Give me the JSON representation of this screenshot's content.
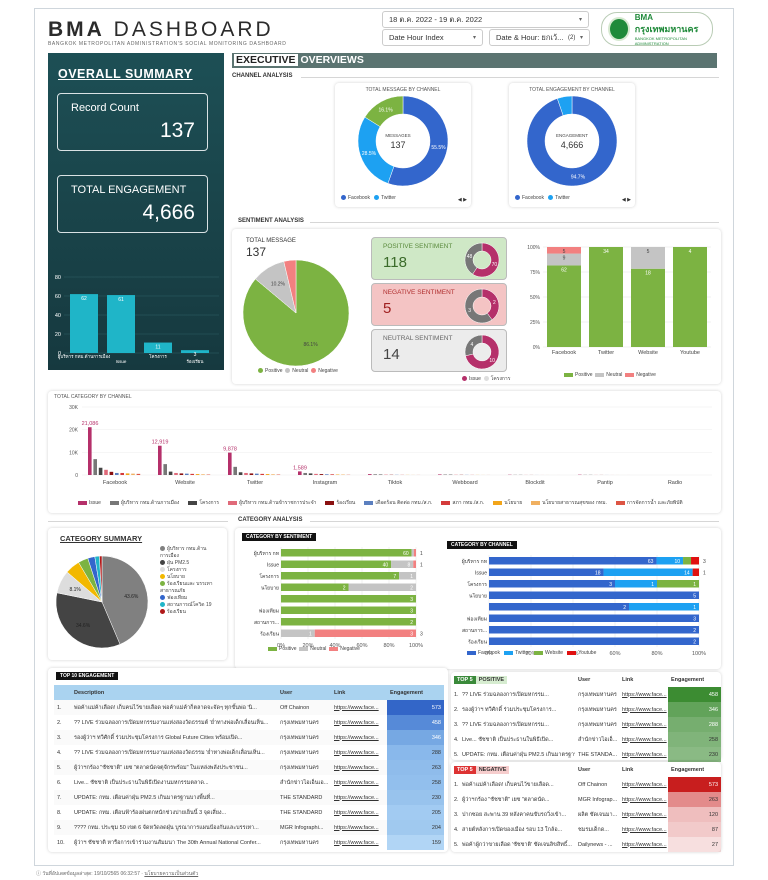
{
  "header": {
    "title_bold": "BMA",
    "title_rest": "DASHBOARD",
    "subtitle": "BANGKOK METROPOLITAN ADMINISTRATION'S SOCIAL MONITORING DASHBOARD",
    "date_range": "18 ต.ค. 2022 - 19 ต.ค. 2022",
    "filter1": "Date Hour Index",
    "filter2": "Date & Hour: ยกเว้...",
    "filter2_count": "(2)",
    "logo_line1": "BMA",
    "logo_line2": "กรุงเทพมหานคร",
    "logo_line3": "BANGKOK METROPOLITAN ADMINISTRATION"
  },
  "summary": {
    "title": "OVERALL SUMMARY",
    "record_label": "Record Count",
    "record_value": "137",
    "engagement_label": "TOTAL ENGAGEMENT",
    "engagement_value": "4,666"
  },
  "exec": {
    "title_a": "EXECUTIVE",
    "title_b": "OVERVIEWS"
  },
  "sections": {
    "channel": "CHANNEL ANALYSIS",
    "sentiment": "SENTIMENT ANALYSIS",
    "category": "CATEGORY ANALYSIS"
  },
  "sentiment": {
    "total_label": "TOTAL MESSAGE",
    "total_value": "137",
    "pos_label": "POSITIVE SENTIMENT",
    "pos_value": "118",
    "neg_label": "NEGATIVE SENTIMENT",
    "neg_value": "5",
    "neu_label": "NEUTRAL SENTIMENT",
    "neu_value": "14",
    "legend": [
      "Positive",
      "Neutral",
      "Negative"
    ],
    "mini_legend": [
      "Issue",
      "โครงการ"
    ]
  },
  "colors": {
    "facebook": "#3366cc",
    "twitter": "#1da1f2",
    "website": "#7cb342",
    "youtube": "#e01010",
    "positive": "#7cb342",
    "neutral": "#c4c4c4",
    "negative": "#f28080",
    "teal": "#1fb5c8",
    "issue": "#b5306a",
    "dark_teal": "#1d4f55"
  },
  "chart_data": [
    {
      "type": "pie",
      "title": "TOTAL MESSAGE BY CHANNEL",
      "center_label": "MESSAGES",
      "center_value": "137",
      "categories": [
        "Facebook",
        "Twitter",
        "Website"
      ],
      "values": [
        55.5,
        28.5,
        16.1
      ],
      "legend": [
        "Facebook",
        "Twitter"
      ]
    },
    {
      "type": "pie",
      "title": "TOTAL ENGAGEMENT BY CHANNEL",
      "center_label": "ENGAGEMENT",
      "center_value": "4,666",
      "categories": [
        "Facebook",
        "Twitter"
      ],
      "values": [
        94.7,
        5.3
      ],
      "legend": [
        "Facebook",
        "Twitter"
      ]
    },
    {
      "type": "bar",
      "categories": [
        "ผู้บริหาร กทม.ด้านการเมือง",
        "Issue",
        "โครงการ",
        "ร้องเรียน"
      ],
      "values": [
        62,
        61,
        11,
        3
      ],
      "ylim": [
        0,
        80
      ],
      "yticks": [
        0,
        20,
        40,
        60,
        80
      ]
    },
    {
      "type": "pie",
      "categories": [
        "Positive",
        "Neutral",
        "Negative"
      ],
      "values": [
        86.1,
        10.2,
        3.7
      ]
    },
    {
      "type": "bar",
      "stacked": "100%",
      "categories": [
        "Facebook",
        "Twitter",
        "Website",
        "Youtube"
      ],
      "series": [
        {
          "name": "Positive",
          "values": [
            62,
            34,
            18,
            4
          ]
        },
        {
          "name": "Neutral",
          "values": [
            9,
            0,
            5,
            0
          ]
        },
        {
          "name": "Negative",
          "values": [
            5,
            0,
            0,
            0
          ]
        }
      ],
      "yticks": [
        "0%",
        "25%",
        "50%",
        "75%",
        "100%"
      ]
    },
    {
      "type": "bar",
      "title": "TOTAL CATEGORY BY CHANNEL",
      "categories": [
        "Facebook",
        "Website",
        "Twitter",
        "Instagram",
        "Tiktok",
        "Webboard",
        "Blockdit",
        "Pantip",
        "Radio"
      ],
      "yticks": [
        "0",
        "10K",
        "20K",
        "30K"
      ],
      "labels_top": [
        "21,086",
        "12,919",
        "9,878",
        "1,589"
      ],
      "legend": [
        "Issue",
        "ผู้บริหาร กทม.ด้านการเมือง",
        "โครงการ",
        "ผู้บริหาร กทม.ด้านข้าราชการประจำ",
        "ร้องเรียน",
        "เดือดร้อน ติดต่อ กทม./ส.ก.",
        "สภา กทม./ส.ก.",
        "นโยบาย",
        "นโยบายสาธารณสุขของ กทม.",
        "การจัดการน้ำ และภัยพิบัติ"
      ]
    },
    {
      "type": "pie",
      "title": "CATEGORY SUMMARY",
      "categories": [
        "ผู้บริหาร กทม.ด้านการเมือง",
        "ฝุ่น PM2.5",
        "โครงการ",
        "นโยบาย",
        "ร้องเรียนและ บรรเทา สาธารณภัย",
        "ฟองเทียม",
        "สถานการณ์โควิด 19",
        "ร้องเรียน"
      ],
      "values": [
        43.6,
        34.6,
        8.1,
        5.2,
        3.5,
        2.5,
        1.6,
        0.9
      ]
    },
    {
      "type": "bar",
      "title": "CATEGORY BY SENTIMENT",
      "stacked": "100%",
      "categories": [
        "ผู้บริหาร กทม.ด้าน การเมือง",
        "Issue",
        "โครงการ",
        "นโยบาย",
        "",
        "ฟองเทียม",
        "สถานการ...",
        "ร้องเรียน"
      ],
      "series": [
        {
          "name": "Positive",
          "values": [
            60,
            40,
            7,
            2,
            3,
            3,
            2,
            0
          ]
        },
        {
          "name": "Neutral",
          "values": [
            1,
            8,
            1,
            2,
            0,
            0,
            0,
            1
          ]
        },
        {
          "name": "Negative",
          "values": [
            1,
            1,
            0,
            0,
            0,
            0,
            0,
            3
          ]
        }
      ],
      "xticks": [
        "0%",
        "20%",
        "40%",
        "60%",
        "80%",
        "100%"
      ]
    },
    {
      "type": "bar",
      "title": "CATEGORY BY CHANNEL",
      "stacked": "100%",
      "categories": [
        "ผู้บริหาร กทม.ด้าน การเมือง",
        "Issue",
        "โครงการ",
        "นโยบาย",
        "",
        "ฟองเทียม",
        "สถานการ...",
        "ร้องเรียน"
      ],
      "series": [
        {
          "name": "Facebook",
          "values": [
            63,
            18,
            3,
            5,
            2,
            3,
            2,
            2
          ]
        },
        {
          "name": "Twitter",
          "values": [
            10,
            14,
            1,
            0,
            1,
            0,
            0,
            0
          ]
        },
        {
          "name": "Website",
          "values": [
            3,
            0,
            1,
            0,
            0,
            0,
            0,
            0
          ]
        },
        {
          "name": "Youtube",
          "values": [
            3,
            1,
            0,
            0,
            0,
            0,
            0,
            0
          ]
        }
      ],
      "xticks": [
        "0%",
        "20%",
        "40%",
        "60%",
        "80%",
        "100%"
      ]
    }
  ],
  "top10": {
    "title": "TOP 10 ENGAGEMENT",
    "cols": [
      "Description",
      "User",
      "Link",
      "Engagement"
    ],
    "rows": [
      [
        "1.",
        "พ่อค้าแม่ค้าเลือด! เก็บคนไว้ขายเลือด พ่อค้าแม่ค้าก็ตลาดจะจัดๆ ทุกขั้นพ่อ 'นิ...",
        "Off Chainon",
        "https://www.face...",
        "573"
      ],
      [
        "2.",
        "?? LIVE ร่วมฉลองการเปิดมหกรรมงานแห่งสองวัดธรรมต์ 'ย่ำทางพ่อเด็กเลื่อนเห็น...",
        "กรุงเทพมหานคร",
        "https://www.face...",
        "458"
      ],
      [
        "3.",
        "รองผู้ว่าฯ ทวีศักดิ์ ร่วมประชุมโครงการ Global Future Cities พร้อมเปิด...",
        "กรุงเทพมหานคร",
        "https://www.face...",
        "346"
      ],
      [
        "4.",
        "?? LIVE ร่วมฉลองการเปิดมหกรรมงานแห่งสองวัดธรรม 'ย่ำทางพ่อเด็กเลื่อนเห็น...",
        "กรุงเทพมหานคร",
        "https://www.face...",
        "288"
      ],
      [
        "5.",
        "ผู้ว่าฯกร้อง \"ชัชชาติ\" เยซ \"ตลาดนัดจตุจักรพร้อม\" ในแหล่งพลังประชาชน...",
        "กรุงเทพมหานคร",
        "https://www.face...",
        "263"
      ],
      [
        "6.",
        "Live... ชัชชาติ เป็นประธานในพิธีเปิดงานมหกรรมตลาด...",
        "สำนักข่าวไอเอ็นเอ...",
        "https://www.face...",
        "258"
      ],
      [
        "7.",
        "UPDATE: กทม. เตือนค่าฝุ่น PM2.5 เกินมาตรฐานบางพื้นที่...",
        "THE STANDARD",
        "https://www.face...",
        "230"
      ],
      [
        "8.",
        "UPDATE: กทม. เตือนฟ้าร้องฝนตกหนักช่วงบ่ายเย็นนี้ 3 จุดเสี่ยง...",
        "THE STANDARD",
        "https://www.face...",
        "205"
      ],
      [
        "9.",
        "???? กทม. ประชุม 50 เขต 6 จัดหวัดลดฝุ่น บูรณาการแผนป้องกันและบรรเทา...",
        "MGR Infographi...",
        "https://www.face...",
        "204"
      ],
      [
        "10.",
        "ผู้ว่าฯ ชัชชาติ หารือการเข้าร่วมงานสัมมนา The 30th Annual National Confer...",
        "กรุงเทพมหานคร",
        "https://www.face...",
        "159"
      ]
    ]
  },
  "top5pos": {
    "title_a": "TOP 5",
    "title_b": "POSITIVE",
    "cols": [
      "User",
      "Link",
      "Engagement"
    ],
    "rows": [
      [
        "1.",
        "?? LIVE ร่วมฉลองการเปิดมหกรรม...",
        "กรุงเทพมหานคร",
        "https://www.face...",
        "458"
      ],
      [
        "2.",
        "รองผู้ว่าฯ ทวีศักดิ์ ร่วมประชุมโครงการ...",
        "กรุงเทพมหานคร",
        "https://www.face...",
        "346"
      ],
      [
        "3.",
        "?? LIVE ร่วมฉลองการเปิดมหกรรม...",
        "กรุงเทพมหานคร",
        "https://www.face...",
        "288"
      ],
      [
        "4.",
        "Live... ชัชชาติ เป็นประธานในพิธีเปิด...",
        "สำนักข่าวไอเอ็...",
        "https://www.face...",
        "258"
      ],
      [
        "5.",
        "UPDATE: กทม. เตือนค่าฝุ่น PM2.5 เกินมาตรฐาน...",
        "THE STANDA...",
        "https://www.face...",
        "230"
      ]
    ]
  },
  "top5neg": {
    "title_a": "TOP 5",
    "title_b": "NEGATIVE",
    "cols": [
      "User",
      "Link",
      "Engagement"
    ],
    "rows": [
      [
        "1.",
        "พ่อค้าแม่ค้าเลือด! เก็บคนไว้ขายเลือด...",
        "Off Chainon",
        "https://www.face...",
        "573"
      ],
      [
        "2.",
        "ผู้ว่าฯกร้อง \"ชัชชาติ\" เยซ \"ตลาดนัด...",
        "MGR Infograp...",
        "https://www.face...",
        "263"
      ],
      [
        "3.",
        "ปากซอย สะพาน 39 หลังคาคนขับรถวิ่งเข้า...",
        "ผลิต ชัดเจนมา...",
        "https://www.face...",
        "120"
      ],
      [
        "4.",
        "สายต์หลังการเปิดของเมือง รอบ 13 ใกล้อ...",
        "ชมรมเด็กด...",
        "https://www.face...",
        "87"
      ],
      [
        "5.",
        "พ่อค้าผู้กว่าขายเลือด 'ชัชชาติ' ชัดเจนลิขสิทธิ์...",
        "Dailynews - ...",
        "https://www.face...",
        "27"
      ]
    ]
  },
  "footer": {
    "updated": "วันที่อัปเดตข้อมูลล่าสุด: 19/10/2565 06:32:57",
    "policy": "นโยบายความเป็นส่วนตัว"
  }
}
